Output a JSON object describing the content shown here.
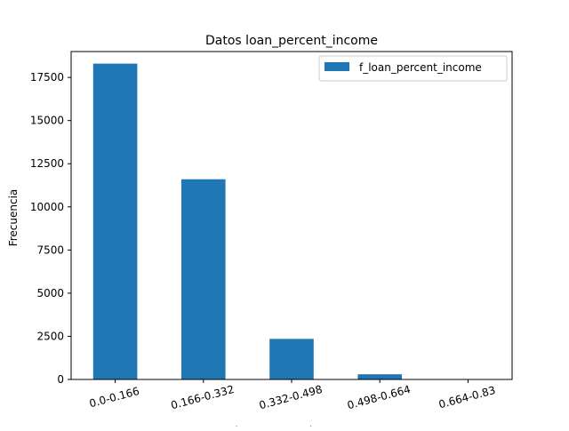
{
  "chart_data": {
    "type": "bar",
    "title": "Datos loan_percent_income",
    "xlabel": "loan_percent_income",
    "ylabel": "Frecuencia",
    "categories": [
      "0.0-0.166",
      "0.166-0.332",
      "0.332-0.498",
      "0.498-0.664",
      "0.664-0.83"
    ],
    "series": [
      {
        "name": "f_loan_percent_income",
        "values": [
          18300,
          11600,
          2350,
          300,
          15
        ]
      }
    ],
    "ylim": [
      0,
      19000
    ],
    "yticks": [
      0,
      2500,
      5000,
      7500,
      10000,
      12500,
      15000,
      17500
    ],
    "ytick_labels": [
      "0",
      "2500",
      "5000",
      "7500",
      "10000",
      "12500",
      "15000",
      "17500"
    ],
    "grid": false,
    "legend_position": "top-right",
    "bar_color": "#1f77b4"
  }
}
